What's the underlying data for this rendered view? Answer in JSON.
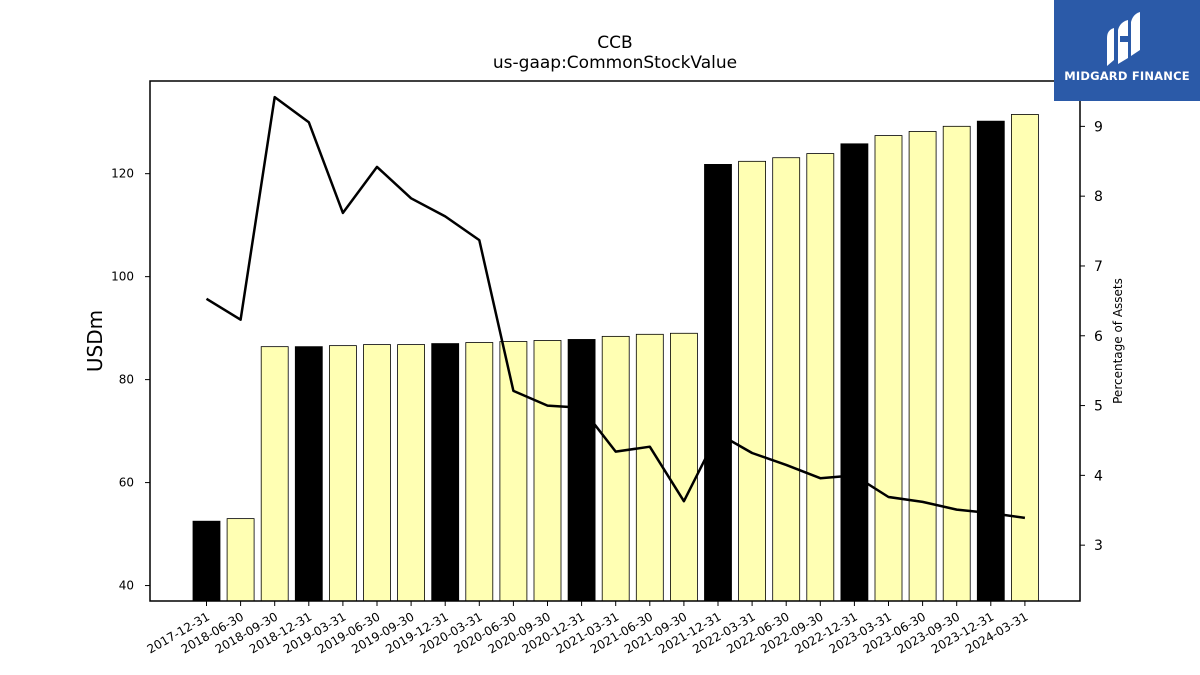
{
  "logo": {
    "text": "MIDGARD FINANCE",
    "icon": "midgard-logo-icon",
    "background": "#2b5aa8"
  },
  "chart_data": {
    "type": "bar",
    "title": "CCB",
    "subtitle": "us-gaap:CommonStockValue",
    "ylabel": "USDm",
    "y2label": "Percentage of Assets",
    "ylim": [
      37,
      138
    ],
    "y2lim": [
      2.2,
      9.65
    ],
    "yticks": [
      40,
      60,
      80,
      100,
      120
    ],
    "y2ticks": [
      3,
      4,
      5,
      6,
      7,
      8,
      9
    ],
    "categories": [
      "2017-12-31",
      "2018-06-30",
      "2018-09-30",
      "2018-12-31",
      "2019-03-31",
      "2019-06-30",
      "2019-09-30",
      "2019-12-31",
      "2020-03-31",
      "2020-06-30",
      "2020-09-30",
      "2020-12-31",
      "2021-03-31",
      "2021-06-30",
      "2021-09-30",
      "2021-12-31",
      "2022-03-31",
      "2022-06-30",
      "2022-09-30",
      "2022-12-31",
      "2023-03-31",
      "2023-06-30",
      "2023-09-30",
      "2023-12-31",
      "2024-03-31"
    ],
    "series": [
      {
        "type": "bar",
        "values": [
          52.5,
          53.0,
          86.4,
          86.4,
          86.6,
          86.8,
          86.8,
          87.0,
          87.2,
          87.4,
          87.6,
          87.8,
          88.4,
          88.8,
          89.0,
          121.8,
          122.4,
          123.1,
          123.9,
          125.8,
          127.4,
          128.2,
          129.2,
          130.2,
          131.5
        ],
        "highlight": [
          true,
          false,
          false,
          true,
          false,
          false,
          false,
          true,
          false,
          false,
          false,
          true,
          false,
          false,
          false,
          true,
          false,
          false,
          false,
          true,
          false,
          false,
          false,
          true,
          false
        ],
        "colors": {
          "highlight": "#000000",
          "normal": "#ffffb3"
        }
      },
      {
        "type": "line",
        "axis": "right",
        "values": [
          6.53,
          6.23,
          9.42,
          9.06,
          7.76,
          8.42,
          7.97,
          7.71,
          7.37,
          5.21,
          5.0,
          4.97,
          4.34,
          4.41,
          3.63,
          4.6,
          4.32,
          4.15,
          3.96,
          4.0,
          3.69,
          3.62,
          3.51,
          3.46,
          3.39
        ],
        "color": "#000000"
      }
    ],
    "grid": false,
    "legend": "none"
  }
}
